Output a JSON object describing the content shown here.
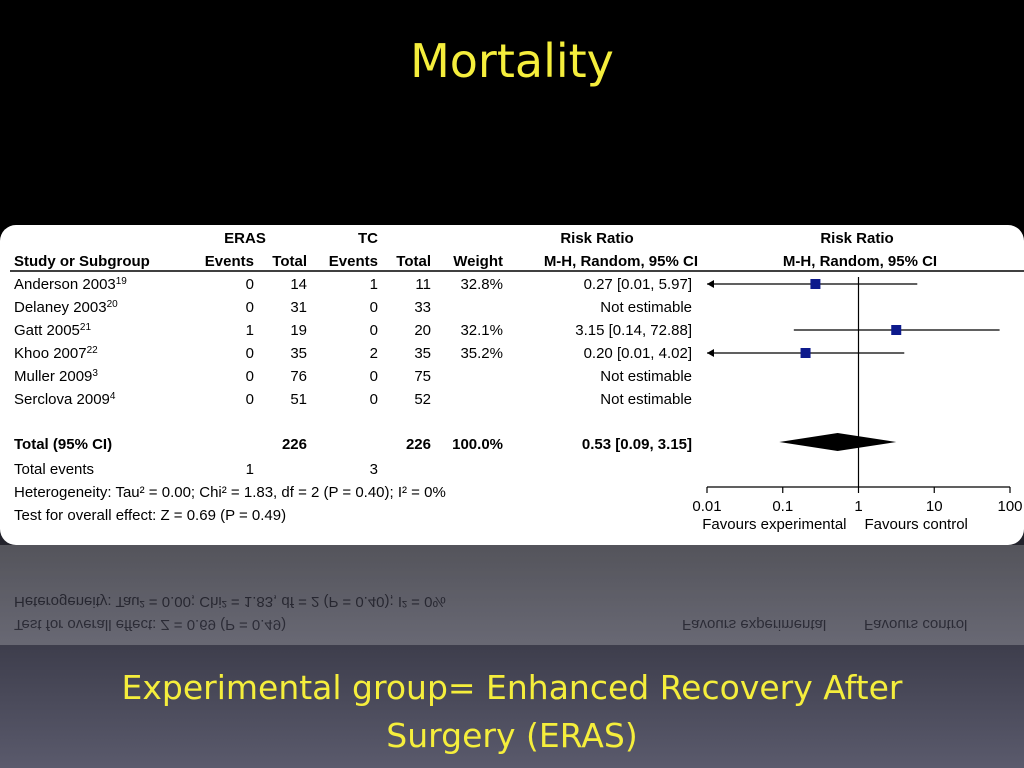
{
  "slide": {
    "title": "Mortality",
    "caption_line1": "Experimental group= Enhanced Recovery After",
    "caption_line2": "Surgery (ERAS)"
  },
  "chart_data": {
    "type": "forest",
    "headers": {
      "group1": "ERAS",
      "group2": "TC",
      "rr_text": "Risk Ratio",
      "rr_plot": "Risk Ratio",
      "study": "Study or Subgroup",
      "events": "Events",
      "total": "Total",
      "weight": "Weight",
      "method_text": "M-H, Random, 95% CI",
      "method_plot": "M-H, Random, 95% CI"
    },
    "studies": [
      {
        "name": "Anderson 2003",
        "ref": "19",
        "e1": "0",
        "t1": "14",
        "e2": "1",
        "t2": "11",
        "weight": "32.8%",
        "ci_text": "0.27 [0.01, 5.97]",
        "rr": 0.27,
        "lo": 0.01,
        "hi": 5.97
      },
      {
        "name": "Delaney 2003",
        "ref": "20",
        "e1": "0",
        "t1": "31",
        "e2": "0",
        "t2": "33",
        "weight": "",
        "ci_text": "Not estimable",
        "rr": null,
        "lo": null,
        "hi": null
      },
      {
        "name": "Gatt 2005",
        "ref": "21",
        "e1": "1",
        "t1": "19",
        "e2": "0",
        "t2": "20",
        "weight": "32.1%",
        "ci_text": "3.15 [0.14, 72.88]",
        "rr": 3.15,
        "lo": 0.14,
        "hi": 72.88
      },
      {
        "name": "Khoo 2007",
        "ref": "22",
        "e1": "0",
        "t1": "35",
        "e2": "2",
        "t2": "35",
        "weight": "35.2%",
        "ci_text": "0.20 [0.01, 4.02]",
        "rr": 0.2,
        "lo": 0.01,
        "hi": 4.02
      },
      {
        "name": "Muller 2009",
        "ref": "3",
        "e1": "0",
        "t1": "76",
        "e2": "0",
        "t2": "75",
        "weight": "",
        "ci_text": "Not estimable",
        "rr": null,
        "lo": null,
        "hi": null
      },
      {
        "name": "Serclova 2009",
        "ref": "4",
        "e1": "0",
        "t1": "51",
        "e2": "0",
        "t2": "52",
        "weight": "",
        "ci_text": "Not estimable",
        "rr": null,
        "lo": null,
        "hi": null
      }
    ],
    "total": {
      "label": "Total (95% CI)",
      "t1": "226",
      "t2": "226",
      "weight": "100.0%",
      "ci_text": "0.53 [0.09, 3.15]",
      "rr": 0.53,
      "lo": 0.09,
      "hi": 3.15
    },
    "total_events": {
      "label": "Total events",
      "e1": "1",
      "e2": "3"
    },
    "heterogeneity": "Heterogeneity: Tau² = 0.00; Chi² = 1.83, df = 2 (P = 0.40); I² = 0%",
    "overall_effect": "Test for overall effect: Z = 0.69 (P = 0.49)",
    "axis": {
      "scale": "log",
      "range": [
        0.01,
        100
      ],
      "ticks": [
        0.01,
        0.1,
        1,
        10,
        100
      ],
      "tick_labels": [
        "0.01",
        "0.1",
        "1",
        "10",
        "100"
      ]
    },
    "favours_left": "Favours experimental",
    "favours_right": "Favours control"
  },
  "colors": {
    "marker": "#0d1a8c",
    "title": "#f5ee3c"
  }
}
